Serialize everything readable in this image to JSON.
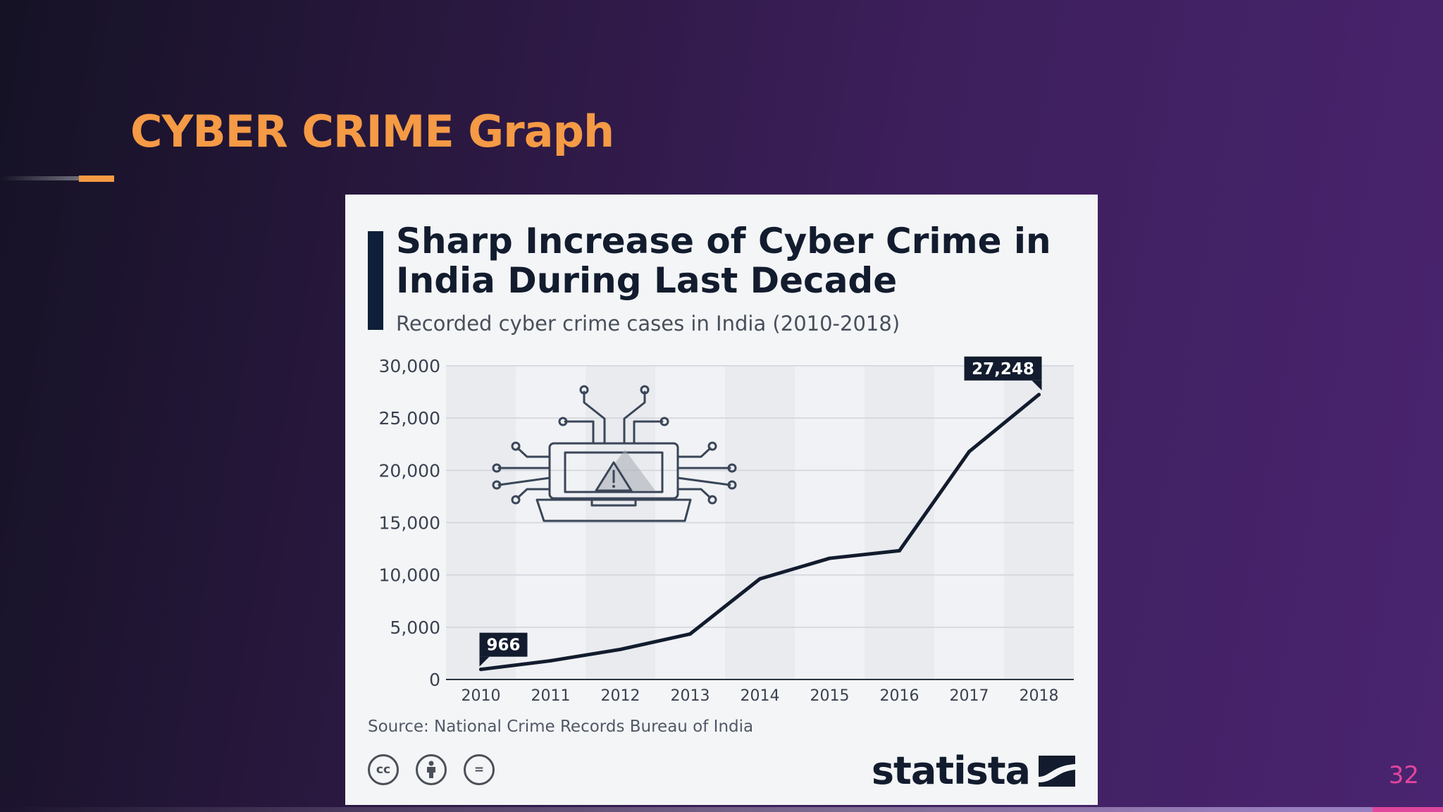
{
  "slide": {
    "title": "CYBER CRIME Graph",
    "page_number": "32"
  },
  "infographic": {
    "source": "Source: National Crime Records Bureau of India",
    "brand": "statista",
    "license_icons": [
      "cc-icon",
      "attribution-icon",
      "no-derivatives-icon"
    ],
    "license_labels": [
      "cc",
      "",
      "="
    ],
    "illustration": "laptop-warning-circuit-icon"
  },
  "colors": {
    "title_accent": "#f59a45",
    "page_number": "#e0469c",
    "line": "#121c2e",
    "card_background": "#f4f5f7"
  },
  "chart_data": {
    "type": "line",
    "title": "Sharp Increase of Cyber Crime in India During Last Decade",
    "subtitle": "Recorded cyber crime cases in India (2010-2018)",
    "categories": [
      "2010",
      "2011",
      "2012",
      "2013",
      "2014",
      "2015",
      "2016",
      "2017",
      "2018"
    ],
    "values": [
      966,
      1791,
      2876,
      4356,
      9622,
      11592,
      12317,
      21796,
      27248
    ],
    "ylim": [
      0,
      30000
    ],
    "yticks": [
      0,
      5000,
      10000,
      15000,
      20000,
      25000,
      30000
    ],
    "ytick_labels": [
      "0",
      "5,000",
      "10,000",
      "15,000",
      "20,000",
      "25,000",
      "30,000"
    ],
    "data_labels": [
      {
        "index": 0,
        "text": "966"
      },
      {
        "index": 8,
        "text": "27,248"
      }
    ],
    "grid": true,
    "legend": "none"
  }
}
